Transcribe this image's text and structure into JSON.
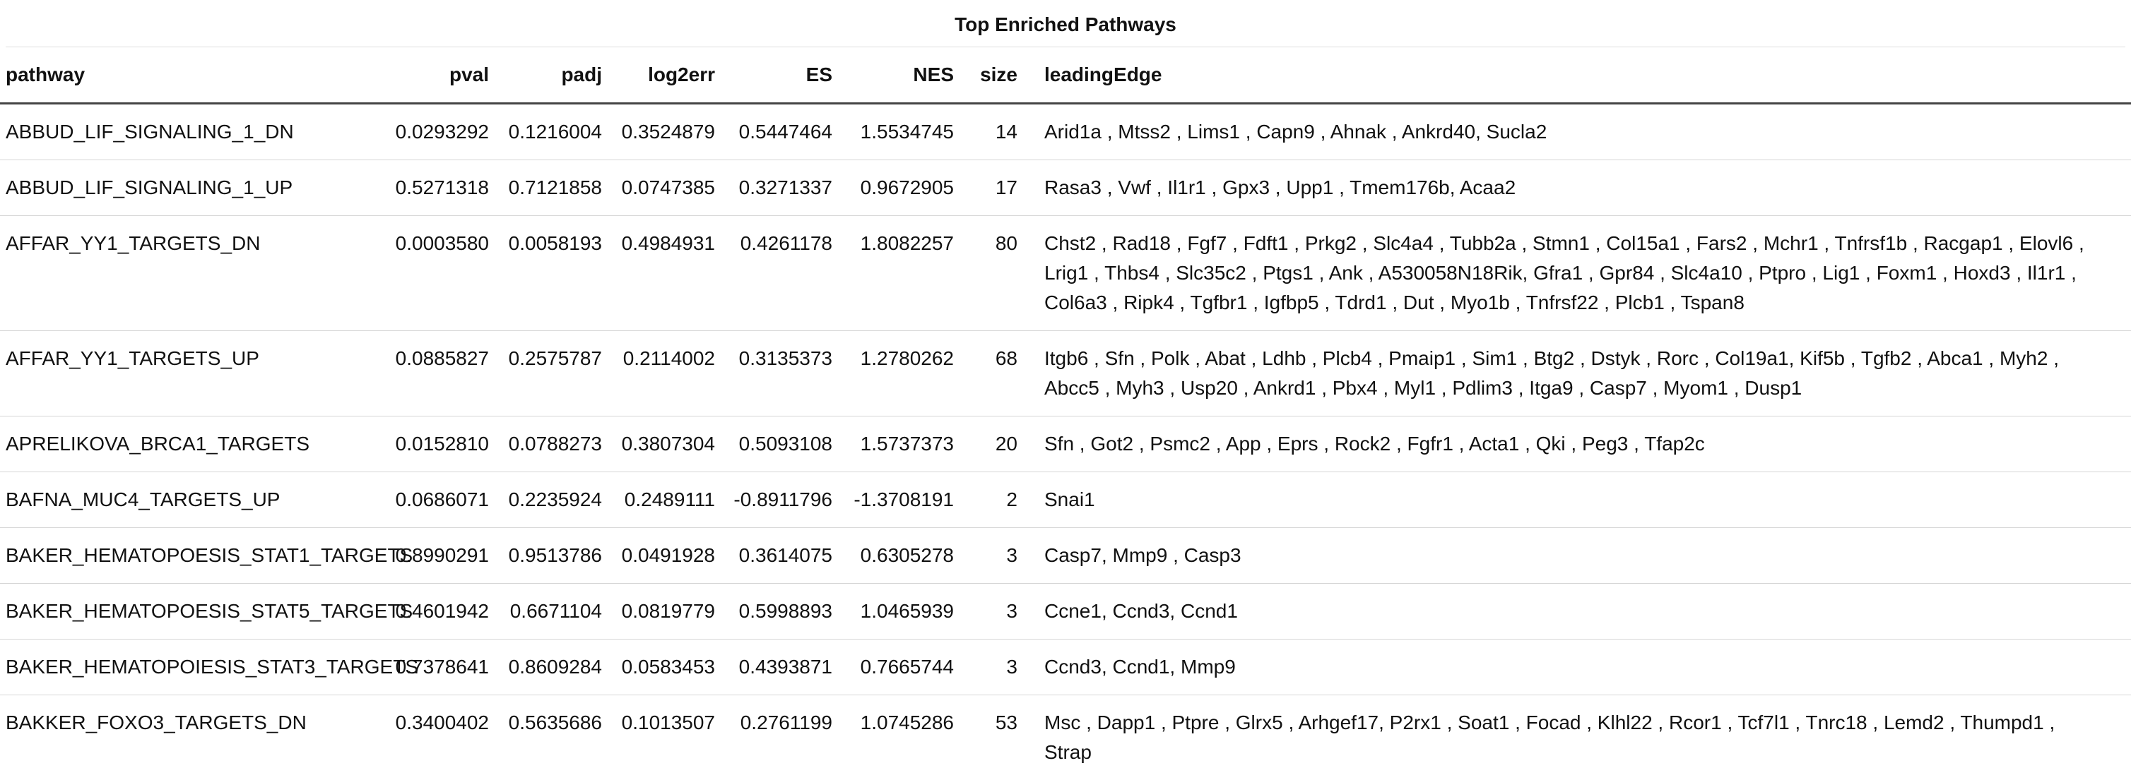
{
  "title": "Top Enriched Pathways",
  "columns": [
    "pathway",
    "pval",
    "padj",
    "log2err",
    "ES",
    "NES",
    "size",
    "leadingEdge"
  ],
  "rows": [
    {
      "pathway": "ABBUD_LIF_SIGNALING_1_DN",
      "pval": "0.0293292",
      "padj": "0.1216004",
      "log2err": "0.3524879",
      "ES": "0.5447464",
      "NES": "1.5534745",
      "size": "14",
      "leadingEdge": "Arid1a , Mtss2 , Lims1 , Capn9 , Ahnak , Ankrd40, Sucla2"
    },
    {
      "pathway": "ABBUD_LIF_SIGNALING_1_UP",
      "pval": "0.5271318",
      "padj": "0.7121858",
      "log2err": "0.0747385",
      "ES": "0.3271337",
      "NES": "0.9672905",
      "size": "17",
      "leadingEdge": "Rasa3 , Vwf , Il1r1 , Gpx3 , Upp1 , Tmem176b, Acaa2"
    },
    {
      "pathway": "AFFAR_YY1_TARGETS_DN",
      "pval": "0.0003580",
      "padj": "0.0058193",
      "log2err": "0.4984931",
      "ES": "0.4261178",
      "NES": "1.8082257",
      "size": "80",
      "leadingEdge": "Chst2 , Rad18 , Fgf7 , Fdft1 , Prkg2 , Slc4a4 , Tubb2a , Stmn1 , Col15a1 , Fars2 , Mchr1 , Tnfrsf1b , Racgap1 , Elovl6 , Lrig1 , Thbs4 , Slc35c2 , Ptgs1 , Ank , A530058N18Rik, Gfra1 , Gpr84 , Slc4a10 , Ptpro , Lig1 , Foxm1 , Hoxd3 , Il1r1 , Col6a3 , Ripk4 , Tgfbr1 , Igfbp5 , Tdrd1 , Dut , Myo1b , Tnfrsf22 , Plcb1 , Tspan8"
    },
    {
      "pathway": "AFFAR_YY1_TARGETS_UP",
      "pval": "0.0885827",
      "padj": "0.2575787",
      "log2err": "0.2114002",
      "ES": "0.3135373",
      "NES": "1.2780262",
      "size": "68",
      "leadingEdge": "Itgb6 , Sfn , Polk , Abat , Ldhb , Plcb4 , Pmaip1 , Sim1 , Btg2 , Dstyk , Rorc , Col19a1, Kif5b , Tgfb2 , Abca1 , Myh2 , Abcc5 , Myh3 , Usp20 , Ankrd1 , Pbx4 , Myl1 , Pdlim3 , Itga9 , Casp7 , Myom1 , Dusp1"
    },
    {
      "pathway": "APRELIKOVA_BRCA1_TARGETS",
      "pval": "0.0152810",
      "padj": "0.0788273",
      "log2err": "0.3807304",
      "ES": "0.5093108",
      "NES": "1.5737373",
      "size": "20",
      "leadingEdge": "Sfn , Got2 , Psmc2 , App , Eprs , Rock2 , Fgfr1 , Acta1 , Qki , Peg3 , Tfap2c"
    },
    {
      "pathway": "BAFNA_MUC4_TARGETS_UP",
      "pval": "0.0686071",
      "padj": "0.2235924",
      "log2err": "0.2489111",
      "ES": "-0.8911796",
      "NES": "-1.3708191",
      "size": "2",
      "leadingEdge": "Snai1"
    },
    {
      "pathway": "BAKER_HEMATOPOESIS_STAT1_TARGETS",
      "pval": "0.8990291",
      "padj": "0.9513786",
      "log2err": "0.0491928",
      "ES": "0.3614075",
      "NES": "0.6305278",
      "size": "3",
      "leadingEdge": "Casp7, Mmp9 , Casp3"
    },
    {
      "pathway": "BAKER_HEMATOPOESIS_STAT5_TARGETS",
      "pval": "0.4601942",
      "padj": "0.6671104",
      "log2err": "0.0819779",
      "ES": "0.5998893",
      "NES": "1.0465939",
      "size": "3",
      "leadingEdge": "Ccne1, Ccnd3, Ccnd1"
    },
    {
      "pathway": "BAKER_HEMATOPOIESIS_STAT3_TARGETS",
      "pval": "0.7378641",
      "padj": "0.8609284",
      "log2err": "0.0583453",
      "ES": "0.4393871",
      "NES": "0.7665744",
      "size": "3",
      "leadingEdge": "Ccnd3, Ccnd1, Mmp9"
    },
    {
      "pathway": "BAKKER_FOXO3_TARGETS_DN",
      "pval": "0.3400402",
      "padj": "0.5635686",
      "log2err": "0.1013507",
      "ES": "0.2761199",
      "NES": "1.0745286",
      "size": "53",
      "leadingEdge": "Msc , Dapp1 , Ptpre , Glrx5 , Arhgef17, P2rx1 , Soat1 , Focad , Klhl22 , Rcor1 , Tcf7l1 , Tnrc18 , Lemd2 , Thumpd1 , Strap"
    }
  ]
}
